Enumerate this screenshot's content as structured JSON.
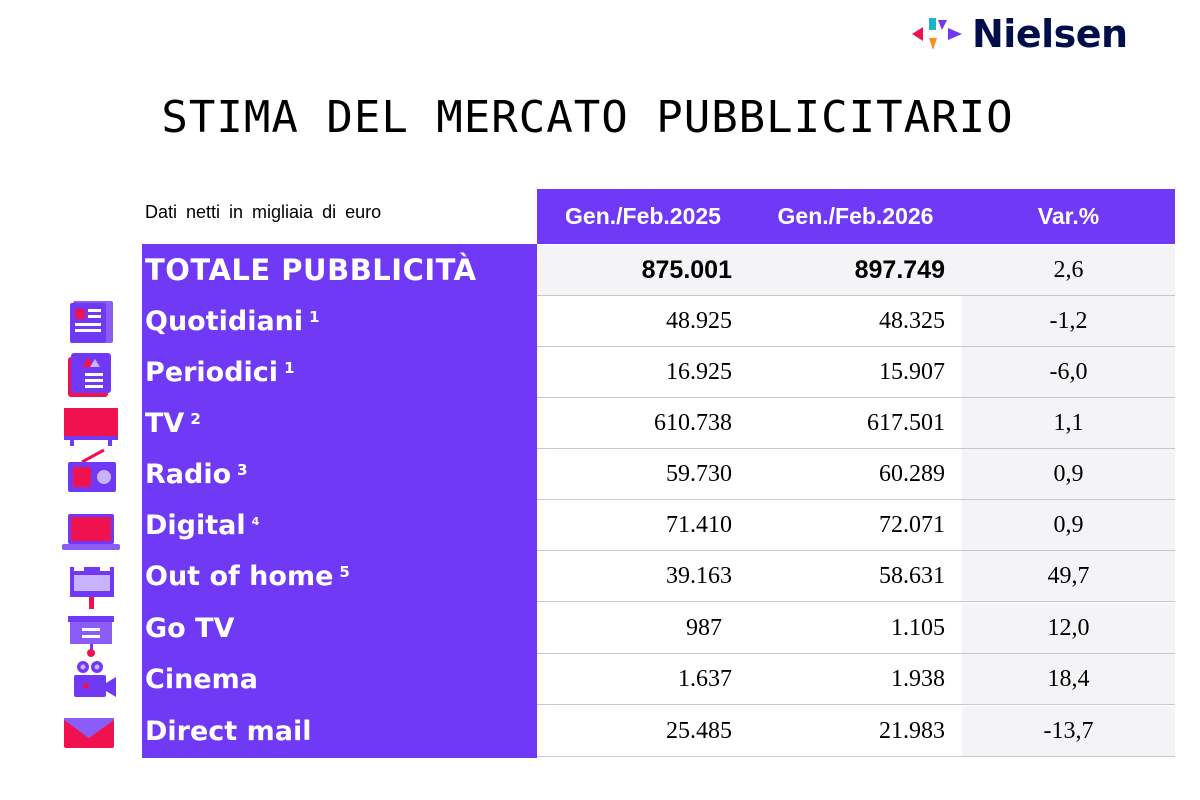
{
  "brand": {
    "name": "Nielsen"
  },
  "title": "STIMA DEL MERCATO PUBBLICITARIO",
  "note": "Dati netti in migliaia di euro",
  "headers": {
    "col1": "Gen./Feb.2025",
    "col2": "Gen./Feb.2026",
    "col3": "Var.%"
  },
  "total": {
    "label": "TOTALE PUBBLICITÀ",
    "v1": "875.001",
    "v2": "897.749",
    "v3": "2,6"
  },
  "rows": [
    {
      "label": "Quotidiani",
      "sup": "1",
      "v1": "48.925",
      "v2": "48.325",
      "v3": "-1,2",
      "icon": "newspaper-icon"
    },
    {
      "label": "Periodici",
      "sup": "1",
      "v1": "16.925",
      "v2": "15.907",
      "v3": "-6,0",
      "icon": "magazine-icon"
    },
    {
      "label": "TV",
      "sup": "2",
      "v1": "610.738",
      "v2": "617.501",
      "v3": "1,1",
      "icon": "tv-icon"
    },
    {
      "label": "Radio",
      "sup": "3",
      "v1": "59.730",
      "v2": "60.289",
      "v3": "0,9",
      "icon": "radio-icon"
    },
    {
      "label": "Digital",
      "sup": "4",
      "v1": "71.410",
      "v2": "72.071",
      "v3": "0,9",
      "icon": "laptop-icon"
    },
    {
      "label": "Out of home",
      "sup": "5",
      "v1": "39.163",
      "v2": "58.631",
      "v3": "49,7",
      "icon": "billboard-icon"
    },
    {
      "label": "Go TV",
      "sup": "",
      "v1": "987",
      "v2": "1.105",
      "v3": "12,0",
      "icon": "screen-sign-icon"
    },
    {
      "label": "Cinema",
      "sup": "",
      "v1": "1.637",
      "v2": "1.938",
      "v3": "18,4",
      "icon": "movie-camera-icon"
    },
    {
      "label": "Direct mail",
      "sup": "",
      "v1": "25.485",
      "v2": "21.983",
      "v3": "-13,7",
      "icon": "envelope-icon"
    }
  ],
  "colors": {
    "accent": "#7039f5",
    "icon_red": "#f0124f",
    "icon_purple": "#7039f5",
    "logo_text": "#000e4b"
  }
}
